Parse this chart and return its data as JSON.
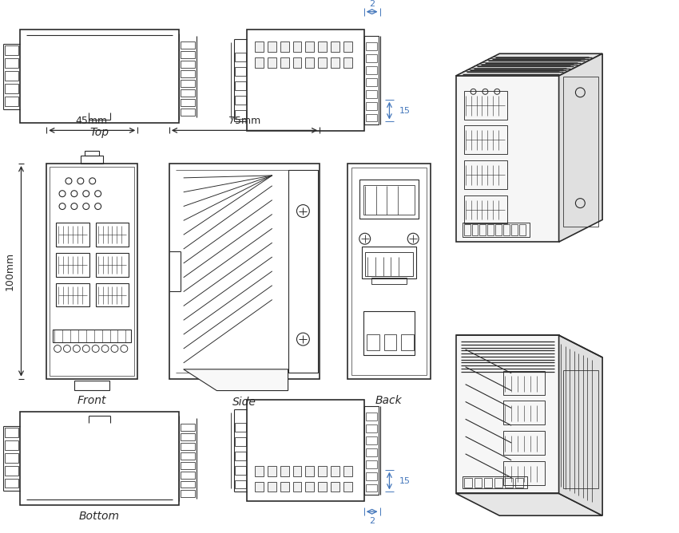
{
  "bg_color": "#ffffff",
  "lc": "#2a2a2a",
  "dc": "#4477bb",
  "lw": 0.8,
  "lw2": 1.2,
  "labels": {
    "top": "Top",
    "front": "Front",
    "side": "Side",
    "back": "Back",
    "bottom": "Bottom"
  },
  "dims": {
    "45mm": "45mm",
    "75mm": "75mm",
    "100mm": "100mm",
    "2": "2",
    "15": "15"
  }
}
